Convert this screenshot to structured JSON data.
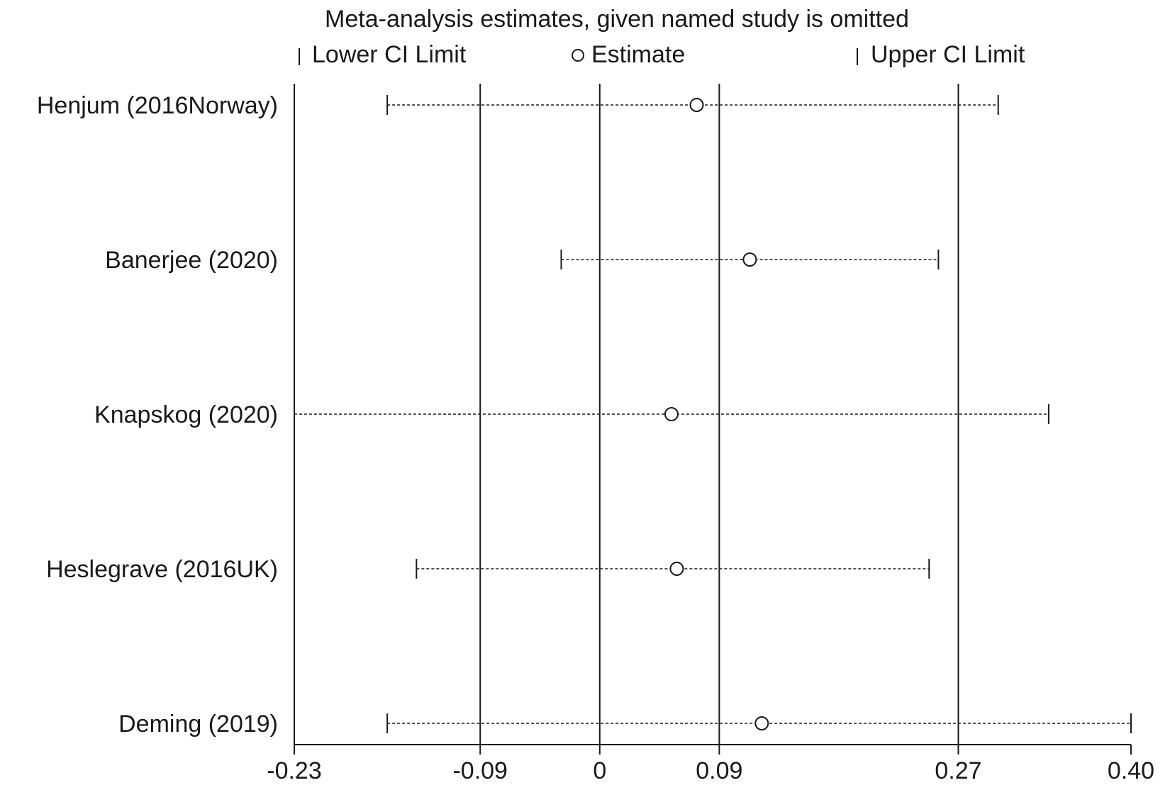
{
  "chart_data": {
    "type": "scatter",
    "title": "Meta-analysis estimates, given named study is omitted",
    "legend": {
      "lower": "Lower CI Limit",
      "estimate": "Estimate",
      "upper": "Upper CI Limit"
    },
    "x_ticks": [
      {
        "value": -0.23,
        "label": "-0.23"
      },
      {
        "value": -0.09,
        "label": "-0.09"
      },
      {
        "value": 0,
        "label": "0"
      },
      {
        "value": 0.09,
        "label": "0.09"
      },
      {
        "value": 0.27,
        "label": "0.27"
      },
      {
        "value": 0.4,
        "label": "0.40"
      }
    ],
    "xlim": [
      -0.23,
      0.4
    ],
    "gridlines": [
      -0.23,
      -0.09,
      0,
      0.09,
      0.27
    ],
    "studies": [
      {
        "name": "Henjum  (2016Norway)",
        "lower": -0.16,
        "estimate": 0.073,
        "upper": 0.3
      },
      {
        "name": "Banerjee  (2020)",
        "lower": -0.029,
        "estimate": 0.113,
        "upper": 0.255
      },
      {
        "name": "Knapskog (2020)",
        "lower": -0.23,
        "estimate": 0.054,
        "upper": 0.338
      },
      {
        "name": "Heslegrave  (2016UK)",
        "lower": -0.138,
        "estimate": 0.058,
        "upper": 0.248
      },
      {
        "name": "Deming (2019)",
        "lower": -0.16,
        "estimate": 0.122,
        "upper": 0.4
      }
    ]
  }
}
